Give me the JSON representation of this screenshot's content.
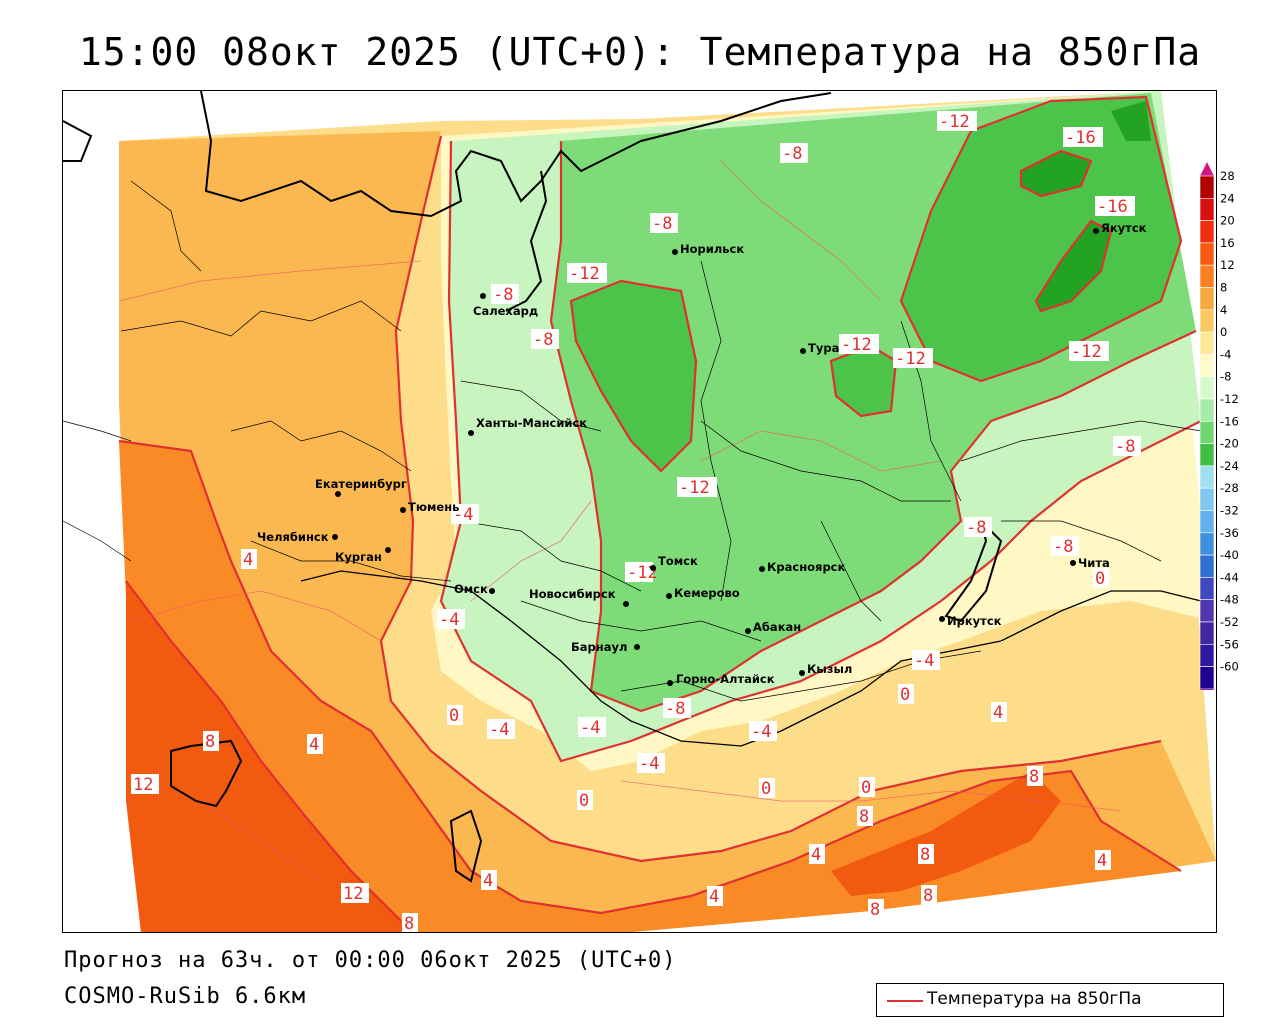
{
  "title": "15:00 08окт 2025 (UTC+0): Температура на 850гПа",
  "footer": {
    "forecast": "Прогноз на 63ч. от 00:00 06окт 2025 (UTC+0)",
    "model": "COSMO-RuSib 6.6км"
  },
  "legend": {
    "label": "Температура на 850гПа",
    "line_color": "#e03030"
  },
  "colorbar": {
    "ticks": [
      "28",
      "24",
      "20",
      "16",
      "12",
      "8",
      "4",
      "0",
      "-4",
      "-8",
      "-12",
      "-16",
      "-20",
      "-24",
      "-28",
      "-32",
      "-36",
      "-40",
      "-44",
      "-48",
      "-52",
      "-56",
      "-60"
    ],
    "colors": [
      "#b00000",
      "#d81010",
      "#f03010",
      "#f85a10",
      "#fa8020",
      "#f8a840",
      "#fcc860",
      "#fde898",
      "#fff8c8",
      "#d8f8d0",
      "#a8eca8",
      "#70d870",
      "#40c040",
      "#a0e0f0",
      "#80c8f0",
      "#60b0f0",
      "#4090e0",
      "#3070d0",
      "#4048c0",
      "#5038b0",
      "#4028a0",
      "#3018a0",
      "#200090"
    ],
    "arrow_colors": [
      "#d01880",
      "#a020c0"
    ]
  },
  "cities": [
    {
      "name": "Норильск"
    },
    {
      "name": "Салехард"
    },
    {
      "name": "Якутск"
    },
    {
      "name": "Тура"
    },
    {
      "name": "Ханты-Мансийск"
    },
    {
      "name": "Екатеринбург"
    },
    {
      "name": "Тюмень"
    },
    {
      "name": "Челябинск"
    },
    {
      "name": "Курган"
    },
    {
      "name": "Омск"
    },
    {
      "name": "Новосибирск"
    },
    {
      "name": "Томск"
    },
    {
      "name": "Кемерово"
    },
    {
      "name": "Красноярск"
    },
    {
      "name": "Абакан"
    },
    {
      "name": "Барнаул"
    },
    {
      "name": "Горно-Алтайск"
    },
    {
      "name": "Кызыл"
    },
    {
      "name": "Иркутск"
    },
    {
      "name": "Чита"
    }
  ],
  "isoline_labels": [
    "-12",
    "-16",
    "-16",
    "-8",
    "-8",
    "-12",
    "-8",
    "-8",
    "-8",
    "-12",
    "-12",
    "-12",
    "-12",
    "-8",
    "-12",
    "-4",
    "-8",
    "-4",
    "-4",
    "-8",
    "-4",
    "0",
    "-4",
    "0",
    "-4",
    "-8",
    "-4",
    "-4",
    "0",
    "0",
    "0",
    "0",
    "4",
    "4",
    "4",
    "4",
    "4",
    "8",
    "8",
    "8",
    "8",
    "12",
    "12",
    "8",
    "4",
    "4",
    "8",
    "8"
  ],
  "field_colors": {
    "warm_12": "#f25a10",
    "warm_8": "#fa8a26",
    "warm_4": "#fcb850",
    "warm_0": "#fddc8a",
    "cold_m4": "#fff8c4",
    "cold_m8": "#c8f4c0",
    "cold_m12": "#7edc78",
    "cold_m16": "#4cc44a",
    "cold_m20": "#22a422",
    "isoline": "#e03030"
  }
}
